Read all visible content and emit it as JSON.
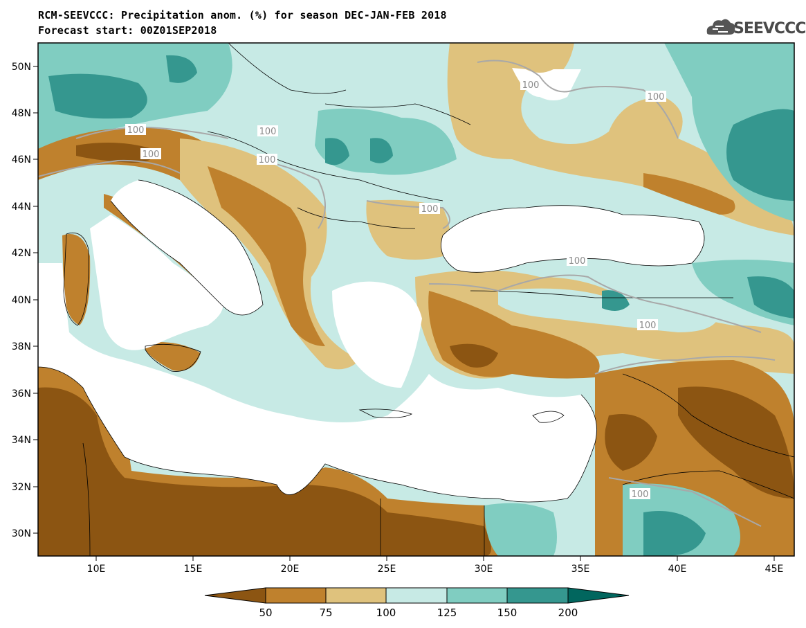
{
  "title": {
    "line1": "RCM-SEEVCCC: Precipitation anom. (%) for season DEC-JAN-FEB 2018",
    "line2": "Forecast start: 00Z01SEP2018"
  },
  "logo": {
    "text": "SEEVCCC",
    "icon": "cloud-icon"
  },
  "map": {
    "lon_range": [
      7,
      46
    ],
    "lat_range": [
      29,
      51
    ],
    "lon_ticks": [
      "10E",
      "15E",
      "20E",
      "25E",
      "30E",
      "35E",
      "40E",
      "45E"
    ],
    "lat_ticks": [
      "30N",
      "32N",
      "34N",
      "36N",
      "38N",
      "40N",
      "42N",
      "44N",
      "46N",
      "48N",
      "50N"
    ],
    "contour_labels": [
      "100",
      "100",
      "100",
      "100",
      "100",
      "100",
      "100",
      "100",
      "100",
      "100"
    ]
  },
  "colorbar": {
    "labels": [
      "50",
      "75",
      "100",
      "125",
      "150",
      "200"
    ],
    "colors": [
      "#8c5512",
      "#bf812d",
      "#dfc27d",
      "#c7eae5",
      "#80cdc1",
      "#35978f",
      "#01665e"
    ]
  }
}
